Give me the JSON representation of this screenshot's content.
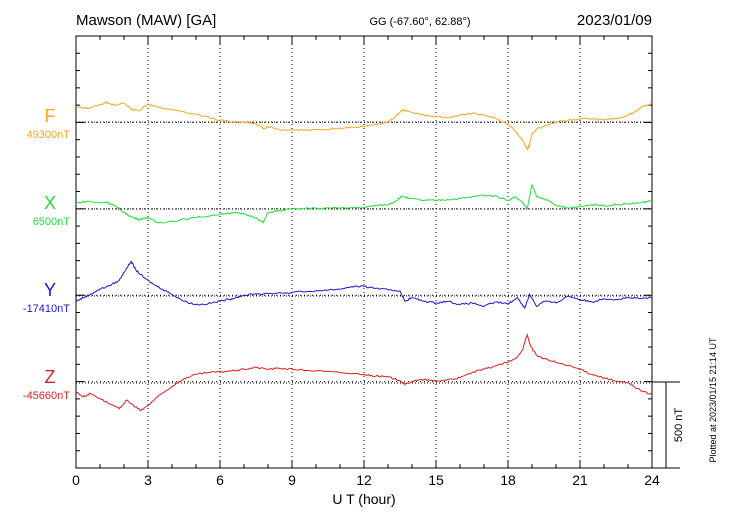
{
  "header": {
    "station": "Mawson (MAW)  [GA]",
    "coords": "GG (-67.60°,  62.88°)",
    "date": "2023/01/09"
  },
  "footer": {
    "plotted_note": "Plotted at 2023/01/15 21:14 UT"
  },
  "chart_data": {
    "type": "line",
    "title": "",
    "xlabel": "U T (hour)",
    "xlim": [
      0,
      24
    ],
    "x_ticks": [
      "0",
      "3",
      "6",
      "9",
      "12",
      "15",
      "18",
      "21",
      "24"
    ],
    "scale_bar": {
      "label": "500 nT",
      "value_nT": 500
    },
    "grid": true,
    "panel_units_per_row_nT": 500,
    "series": [
      {
        "name": "F",
        "baseline_label": "49300nT",
        "baseline_nT": 49300,
        "color": "#f5a623",
        "x": [
          0,
          0.5,
          1.0,
          1.3,
          1.6,
          2.0,
          2.3,
          2.6,
          3.0,
          3.4,
          4.0,
          5.0,
          6.0,
          6.5,
          7.0,
          7.5,
          7.8,
          8.0,
          8.5,
          9.0,
          10.0,
          11.0,
          12.0,
          12.5,
          13.0,
          13.3,
          13.6,
          13.9,
          14.5,
          15.0,
          15.5,
          16.0,
          16.5,
          17.0,
          17.5,
          18.0,
          18.3,
          18.6,
          18.8,
          18.9,
          19.0,
          19.2,
          19.5,
          20.0,
          20.5,
          21.0,
          21.5,
          22.0,
          22.5,
          23.0,
          23.3,
          23.6,
          24.0
        ],
        "y": [
          49385,
          49380,
          49400,
          49415,
          49395,
          49410,
          49375,
          49365,
          49405,
          49385,
          49370,
          49345,
          49310,
          49300,
          49300,
          49290,
          49260,
          49275,
          49255,
          49255,
          49255,
          49265,
          49275,
          49285,
          49300,
          49330,
          49370,
          49360,
          49340,
          49330,
          49325,
          49340,
          49350,
          49340,
          49320,
          49290,
          49250,
          49195,
          49140,
          49170,
          49230,
          49260,
          49275,
          49300,
          49310,
          49315,
          49320,
          49310,
          49320,
          49340,
          49360,
          49390,
          49405
        ]
      },
      {
        "name": "X",
        "baseline_label": "6500nT",
        "baseline_nT": 6500,
        "color": "#1fe03a",
        "x": [
          0,
          0.5,
          1.0,
          1.3,
          1.6,
          2.0,
          2.3,
          2.6,
          3.0,
          3.4,
          4.0,
          5.0,
          6.0,
          6.5,
          7.0,
          7.5,
          7.8,
          8.0,
          8.5,
          9.0,
          10.0,
          11.0,
          12.0,
          12.5,
          13.0,
          13.3,
          13.6,
          13.9,
          14.5,
          15.0,
          15.5,
          16.0,
          16.5,
          17.0,
          17.5,
          18.0,
          18.3,
          18.6,
          18.8,
          19.0,
          19.2,
          19.5,
          20.0,
          20.5,
          21.0,
          21.5,
          22.0,
          22.5,
          23.0,
          23.5,
          24.0
        ],
        "y": [
          6535,
          6545,
          6535,
          6540,
          6520,
          6480,
          6455,
          6440,
          6450,
          6420,
          6430,
          6450,
          6470,
          6480,
          6470,
          6450,
          6420,
          6480,
          6490,
          6500,
          6505,
          6505,
          6510,
          6520,
          6525,
          6545,
          6575,
          6560,
          6550,
          6550,
          6555,
          6560,
          6570,
          6580,
          6575,
          6550,
          6570,
          6540,
          6500,
          6640,
          6570,
          6560,
          6520,
          6505,
          6515,
          6525,
          6520,
          6525,
          6530,
          6535,
          6550
        ]
      },
      {
        "name": "Y",
        "baseline_label": "-17410nT",
        "baseline_nT": -17410,
        "color": "#1a1acc",
        "x": [
          0,
          0.3,
          0.6,
          1.0,
          1.4,
          1.8,
          2.1,
          2.3,
          2.5,
          2.8,
          3.2,
          3.6,
          4.0,
          4.5,
          5.0,
          5.5,
          6.0,
          6.5,
          7.0,
          8.0,
          9.0,
          10.0,
          11.0,
          11.5,
          12.0,
          12.5,
          13.0,
          13.5,
          13.7,
          14.0,
          14.5,
          15.0,
          15.5,
          16.0,
          16.5,
          17.0,
          17.5,
          18.0,
          18.4,
          18.7,
          18.9,
          19.2,
          19.5,
          20.0,
          20.5,
          21.0,
          21.5,
          22.0,
          22.5,
          23.0,
          23.5,
          24.0
        ],
        "y": [
          -17440,
          -17420,
          -17400,
          -17370,
          -17350,
          -17320,
          -17250,
          -17210,
          -17260,
          -17300,
          -17340,
          -17370,
          -17400,
          -17440,
          -17460,
          -17455,
          -17440,
          -17425,
          -17405,
          -17395,
          -17390,
          -17380,
          -17370,
          -17355,
          -17355,
          -17365,
          -17375,
          -17380,
          -17440,
          -17420,
          -17440,
          -17450,
          -17440,
          -17460,
          -17450,
          -17470,
          -17445,
          -17455,
          -17420,
          -17480,
          -17400,
          -17470,
          -17440,
          -17450,
          -17410,
          -17430,
          -17445,
          -17425,
          -17430,
          -17420,
          -17425,
          -17420
        ]
      },
      {
        "name": "Z",
        "baseline_label": "-45660nT",
        "baseline_nT": -45660,
        "color": "#e02020",
        "x": [
          0,
          0.3,
          0.6,
          1.0,
          1.4,
          1.8,
          2.1,
          2.4,
          2.7,
          3.0,
          3.4,
          3.8,
          4.2,
          4.6,
          5.0,
          5.5,
          6.0,
          6.5,
          7.0,
          7.5,
          8.0,
          8.5,
          9.0,
          10.0,
          11.0,
          12.0,
          12.5,
          13.0,
          13.5,
          13.7,
          14.0,
          14.5,
          15.0,
          15.5,
          16.0,
          16.5,
          17.0,
          17.5,
          18.0,
          18.3,
          18.6,
          18.8,
          18.95,
          19.2,
          19.5,
          20.0,
          20.5,
          21.0,
          21.5,
          22.0,
          22.5,
          23.0,
          23.5,
          24.0
        ],
        "y": [
          -45710,
          -45740,
          -45720,
          -45750,
          -45780,
          -45810,
          -45760,
          -45790,
          -45820,
          -45790,
          -45740,
          -45700,
          -45660,
          -45630,
          -45610,
          -45600,
          -45595,
          -45590,
          -45580,
          -45570,
          -45580,
          -45575,
          -45580,
          -45590,
          -45600,
          -45610,
          -45620,
          -45625,
          -45645,
          -45670,
          -45650,
          -45640,
          -45650,
          -45640,
          -45630,
          -45600,
          -45580,
          -45560,
          -45540,
          -45520,
          -45470,
          -45380,
          -45450,
          -45500,
          -45520,
          -45540,
          -45560,
          -45580,
          -45610,
          -45630,
          -45650,
          -45660,
          -45700,
          -45730
        ]
      }
    ]
  }
}
